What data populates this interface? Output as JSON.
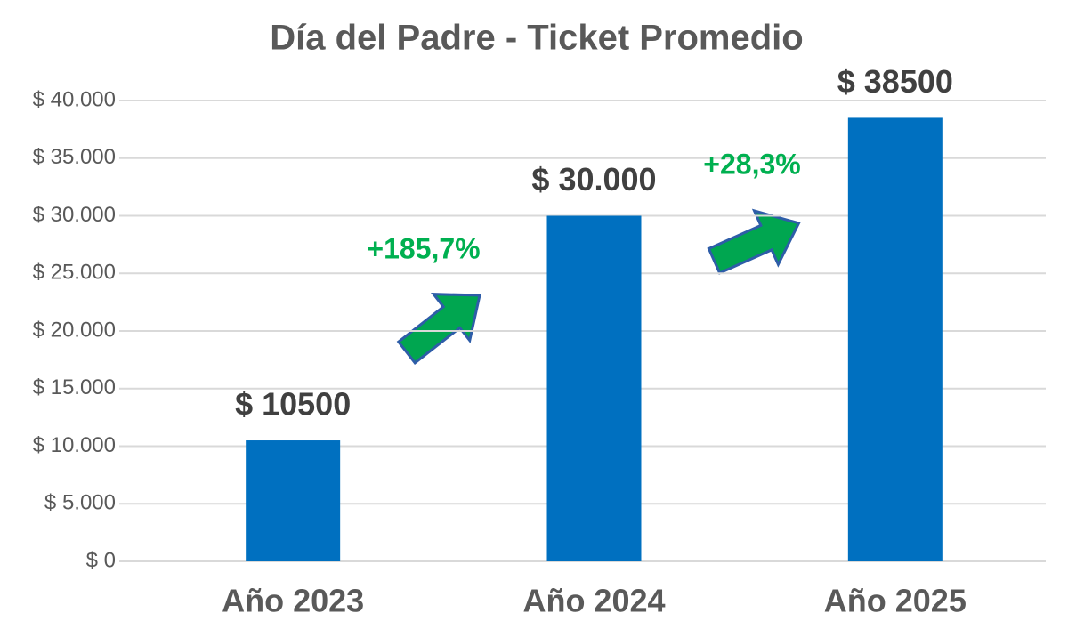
{
  "chart_data": {
    "type": "bar",
    "title": "Día del Padre - Ticket Promedio",
    "categories": [
      "Año 2023",
      "Año 2024",
      "Año 2025"
    ],
    "values": [
      10500,
      30000,
      38500
    ],
    "value_labels": [
      "$ 10500",
      "$ 30.000",
      "$ 38500"
    ],
    "color": "#0070c0",
    "ylim": [
      0,
      40000
    ],
    "yticks": [
      {
        "value": 0,
        "label": "$ 0"
      },
      {
        "value": 5000,
        "label": "$ 5.000"
      },
      {
        "value": 10000,
        "label": "$ 10.000"
      },
      {
        "value": 15000,
        "label": "$ 15.000"
      },
      {
        "value": 20000,
        "label": "$ 20.000"
      },
      {
        "value": 25000,
        "label": "$ 25.000"
      },
      {
        "value": 30000,
        "label": "$ 30.000"
      },
      {
        "value": 35000,
        "label": "$ 35.000"
      },
      {
        "value": 40000,
        "label": "$ 40.000"
      }
    ],
    "grid": true,
    "annotations": [
      "+185,7%",
      "+28,3%"
    ]
  }
}
